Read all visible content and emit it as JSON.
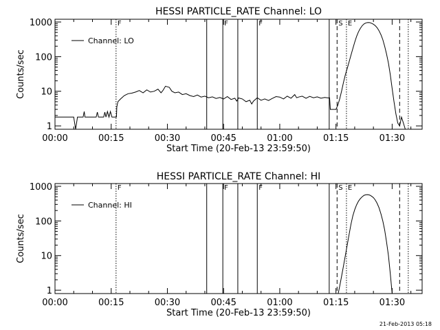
{
  "footer": {
    "timestamp": "21-Feb-2013 05:18"
  },
  "chart_data": [
    {
      "type": "line",
      "title": "HESSI PARTICLE_RATE Channel: LO",
      "xlabel": "Start Time (20-Feb-13 23:59:50)",
      "ylabel": "Counts/sec",
      "y_scale": "log",
      "xlim": [
        0,
        98
      ],
      "ylim": [
        0.8,
        1200
      ],
      "x_ticks": [
        0,
        15,
        30,
        45,
        60,
        75,
        90
      ],
      "x_tick_labels": [
        "00:00",
        "00:15",
        "00:30",
        "00:45",
        "01:00",
        "01:15",
        "01:30"
      ],
      "y_ticks": [
        1,
        10,
        100,
        1000
      ],
      "y_tick_labels": [
        "1",
        "10",
        "100",
        "1000"
      ],
      "legend": {
        "label": "Channel: LO",
        "position": "top-left"
      },
      "series": [
        {
          "name": "Channel: LO",
          "points": [
            [
              0,
              1.8
            ],
            [
              5,
              1.8
            ],
            [
              5.5,
              0.8
            ],
            [
              6,
              1.8
            ],
            [
              7.5,
              1.8
            ],
            [
              7.8,
              2.6
            ],
            [
              8,
              1.8
            ],
            [
              11,
              1.8
            ],
            [
              11.3,
              2.5
            ],
            [
              11.6,
              1.8
            ],
            [
              13,
              1.8
            ],
            [
              13.3,
              2.5
            ],
            [
              13.6,
              1.8
            ],
            [
              14,
              2.6
            ],
            [
              14.4,
              1.8
            ],
            [
              14.8,
              2.6
            ],
            [
              15.2,
              1.8
            ],
            [
              16.4,
              1.8
            ],
            [
              16.5,
              3.5
            ],
            [
              16.8,
              5.0
            ],
            [
              17.5,
              6.0
            ],
            [
              18.5,
              7.5
            ],
            [
              19.5,
              8.5
            ],
            [
              20.5,
              8.8
            ],
            [
              21.5,
              9.5
            ],
            [
              22.5,
              10.5
            ],
            [
              23.5,
              9.0
            ],
            [
              24.5,
              11.0
            ],
            [
              25.5,
              9.5
            ],
            [
              26.5,
              10.0
            ],
            [
              27.5,
              11.5
            ],
            [
              28.3,
              9.0
            ],
            [
              28.8,
              10.5
            ],
            [
              29.5,
              14.0
            ],
            [
              30.5,
              13.0
            ],
            [
              31.2,
              10.0
            ],
            [
              32,
              9.0
            ],
            [
              33,
              9.5
            ],
            [
              34,
              8.0
            ],
            [
              35,
              8.5
            ],
            [
              36,
              7.5
            ],
            [
              37,
              7.0
            ],
            [
              38,
              7.8
            ],
            [
              39,
              6.8
            ],
            [
              40,
              7.2
            ],
            [
              41,
              6.5
            ],
            [
              42,
              6.9
            ],
            [
              43,
              6.2
            ],
            [
              44,
              6.6
            ],
            [
              45,
              6.0
            ],
            [
              46,
              7.0
            ],
            [
              47,
              5.8
            ],
            [
              48,
              6.3
            ],
            [
              48.5,
              5.2
            ],
            [
              49,
              6.4
            ],
            [
              50,
              6.0
            ],
            [
              51,
              5.0
            ],
            [
              52,
              5.5
            ],
            [
              52.5,
              4.3
            ],
            [
              53,
              5.2
            ],
            [
              54,
              6.5
            ],
            [
              55,
              5.5
            ],
            [
              56,
              6.0
            ],
            [
              57,
              5.4
            ],
            [
              58,
              6.2
            ],
            [
              59,
              7.0
            ],
            [
              60,
              6.8
            ],
            [
              61,
              6.0
            ],
            [
              62,
              7.2
            ],
            [
              63,
              6.3
            ],
            [
              64,
              8.0
            ],
            [
              64.5,
              6.5
            ],
            [
              65,
              6.8
            ],
            [
              66,
              7.2
            ],
            [
              67,
              6.3
            ],
            [
              68,
              7.1
            ],
            [
              69,
              6.5
            ],
            [
              70,
              6.9
            ],
            [
              71,
              6.3
            ],
            [
              72,
              6.6
            ],
            [
              73,
              6.4
            ],
            [
              73.3,
              6.5
            ],
            [
              73.5,
              3.0
            ],
            [
              74,
              3.0
            ],
            [
              75,
              3.0
            ],
            [
              75.5,
              4.0
            ],
            [
              76,
              6.0
            ],
            [
              76.5,
              10.0
            ],
            [
              77,
              18.0
            ],
            [
              77.5,
              30.0
            ],
            [
              78,
              45.0
            ],
            [
              78.5,
              70.0
            ],
            [
              79,
              110.0
            ],
            [
              79.5,
              170.0
            ],
            [
              80,
              260.0
            ],
            [
              80.5,
              380.0
            ],
            [
              81,
              520.0
            ],
            [
              81.5,
              650.0
            ],
            [
              82,
              780.0
            ],
            [
              82.5,
              880.0
            ],
            [
              83,
              940.0
            ],
            [
              83.5,
              970.0
            ],
            [
              84,
              960.0
            ],
            [
              84.5,
              920.0
            ],
            [
              85,
              860.0
            ],
            [
              85.5,
              780.0
            ],
            [
              86,
              680.0
            ],
            [
              86.5,
              560.0
            ],
            [
              87,
              430.0
            ],
            [
              87.5,
              310.0
            ],
            [
              88,
              200.0
            ],
            [
              88.5,
              120.0
            ],
            [
              89,
              65.0
            ],
            [
              89.5,
              30.0
            ],
            [
              90,
              12.0
            ],
            [
              90.5,
              5.0
            ],
            [
              91,
              2.2
            ],
            [
              91.5,
              1.2
            ],
            [
              92,
              1.0
            ],
            [
              92.5,
              1.8
            ],
            [
              93,
              1.2
            ],
            [
              93.5,
              0.8
            ]
          ]
        }
      ],
      "markers": [
        {
          "x": 16.3,
          "label": "F",
          "style": "dotted"
        },
        {
          "x": 40.5,
          "label": "",
          "style": "solid"
        },
        {
          "x": 44.8,
          "label": "F",
          "style": "solid"
        },
        {
          "x": 48.8,
          "label": "",
          "style": "solid"
        },
        {
          "x": 54.0,
          "label": "F",
          "style": "solid"
        },
        {
          "x": 73.2,
          "label": "",
          "style": "solid"
        },
        {
          "x": 75.3,
          "label": "S",
          "style": "dashed"
        },
        {
          "x": 77.8,
          "label": "E",
          "style": "dotted"
        },
        {
          "x": 92.0,
          "label": "",
          "style": "dashed"
        },
        {
          "x": 94.3,
          "label": "",
          "style": "dotted"
        }
      ]
    },
    {
      "type": "line",
      "title": "HESSI PARTICLE_RATE Channel: HI",
      "xlabel": "Start Time (20-Feb-13 23:59:50)",
      "ylabel": "Counts/sec",
      "y_scale": "log",
      "xlim": [
        0,
        98
      ],
      "ylim": [
        0.8,
        1200
      ],
      "x_ticks": [
        0,
        15,
        30,
        45,
        60,
        75,
        90
      ],
      "x_tick_labels": [
        "00:00",
        "00:15",
        "00:30",
        "00:45",
        "01:00",
        "01:15",
        "01:30"
      ],
      "y_ticks": [
        1,
        10,
        100,
        1000
      ],
      "y_tick_labels": [
        "1",
        "10",
        "100",
        "1000"
      ],
      "legend": {
        "label": "Channel: HI",
        "position": "top-left"
      },
      "series": [
        {
          "name": "Channel: HI",
          "points": [
            [
              75.6,
              0.8
            ],
            [
              76,
              1.3
            ],
            [
              76.5,
              2.5
            ],
            [
              77,
              5.0
            ],
            [
              77.5,
              10.0
            ],
            [
              78,
              20.0
            ],
            [
              78.5,
              40.0
            ],
            [
              79,
              80.0
            ],
            [
              79.5,
              140.0
            ],
            [
              80,
              210.0
            ],
            [
              80.5,
              290.0
            ],
            [
              81,
              370.0
            ],
            [
              81.5,
              440.0
            ],
            [
              82,
              500.0
            ],
            [
              82.5,
              550.0
            ],
            [
              83,
              570.0
            ],
            [
              83.5,
              575.0
            ],
            [
              84,
              560.0
            ],
            [
              84.5,
              520.0
            ],
            [
              85,
              470.0
            ],
            [
              85.5,
              400.0
            ],
            [
              86,
              320.0
            ],
            [
              86.5,
              240.0
            ],
            [
              87,
              160.0
            ],
            [
              87.5,
              100.0
            ],
            [
              88,
              55.0
            ],
            [
              88.5,
              25.0
            ],
            [
              89,
              10.0
            ],
            [
              89.5,
              3.0
            ],
            [
              90,
              0.8
            ]
          ]
        }
      ],
      "markers": [
        {
          "x": 16.3,
          "label": "F",
          "style": "dotted"
        },
        {
          "x": 40.5,
          "label": "",
          "style": "solid"
        },
        {
          "x": 44.8,
          "label": "F",
          "style": "solid"
        },
        {
          "x": 48.8,
          "label": "",
          "style": "solid"
        },
        {
          "x": 54.0,
          "label": "F",
          "style": "solid"
        },
        {
          "x": 73.2,
          "label": "",
          "style": "solid"
        },
        {
          "x": 75.3,
          "label": "S",
          "style": "dashed"
        },
        {
          "x": 77.8,
          "label": "E",
          "style": "dotted"
        },
        {
          "x": 92.0,
          "label": "",
          "style": "dashed"
        },
        {
          "x": 94.3,
          "label": "",
          "style": "dotted"
        }
      ]
    }
  ]
}
